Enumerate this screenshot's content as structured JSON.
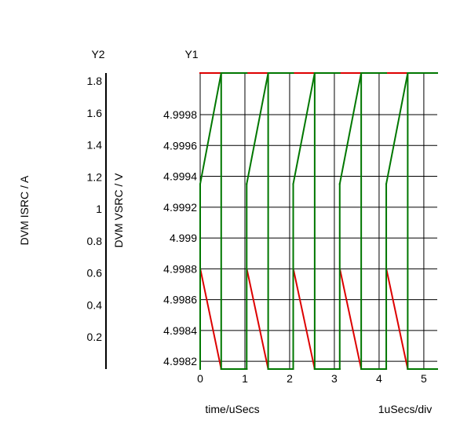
{
  "chart_data": {
    "type": "line",
    "title": "",
    "xlabel": "time/uSecs",
    "x_scale_note": "1uSecs/div",
    "xlim": [
      0,
      5.3
    ],
    "x_ticks": [
      "0",
      "1",
      "2",
      "3",
      "4",
      "5"
    ],
    "y1": {
      "axis_name": "Y1",
      "label": "DVM VSRC / V",
      "ylim": [
        4.99815,
        5.00007
      ],
      "ticks": [
        "4.9982",
        "4.9984",
        "4.9986",
        "4.9988",
        "4.999",
        "4.9992",
        "4.9994",
        "4.9996",
        "4.9998"
      ]
    },
    "y2": {
      "axis_name": "Y2",
      "label": "DVM ISRC / A",
      "ylim": [
        0,
        1.85
      ],
      "ticks": [
        "0.2",
        "0.4",
        "0.6",
        "0.8",
        "1",
        "1.2",
        "1.4",
        "1.6",
        "1.8"
      ]
    },
    "grid": true,
    "series": [
      {
        "name": "",
        "axis": "y1",
        "color": "#dd0000",
        "points": [
          [
            0,
            5.00007
          ],
          [
            0,
            4.99971
          ],
          [
            0,
            5.00007
          ],
          [
            1.04,
            5.00007
          ],
          [
            1.04,
            4.99971
          ],
          [
            1.04,
            5.00007
          ],
          [
            2.08,
            5.00007
          ],
          [
            2.08,
            4.99971
          ],
          [
            2.08,
            5.00007
          ],
          [
            3.12,
            5.00007
          ],
          [
            3.12,
            4.99971
          ],
          [
            3.12,
            5.00007
          ],
          [
            4.16,
            5.00007
          ],
          [
            4.16,
            4.99971
          ],
          [
            4.16,
            5.00007
          ]
        ],
        "segments": [
          [
            [
              0,
              5.00007
            ],
            [
              0.47,
              5.00007
            ]
          ],
          [
            [
              0.47,
              4.99815
            ],
            [
              1.04,
              4.99815
            ]
          ],
          [
            [
              1.04,
              5.00007
            ],
            [
              1.1,
              5.00007
            ]
          ],
          [
            [
              0.01,
              4.99879
            ],
            [
              0.47,
              4.99815
            ]
          ],
          [
            [
              1.04,
              5.00007
            ],
            [
              1.52,
              5.00007
            ]
          ],
          [
            [
              1.52,
              4.99815
            ],
            [
              2.08,
              4.99815
            ]
          ],
          [
            [
              1.05,
              4.99879
            ],
            [
              1.52,
              4.99815
            ]
          ],
          [
            [
              2.08,
              5.00007
            ],
            [
              2.56,
              5.00007
            ]
          ],
          [
            [
              2.56,
              4.99815
            ],
            [
              3.12,
              4.99815
            ]
          ],
          [
            [
              2.09,
              4.99879
            ],
            [
              2.56,
              4.99815
            ]
          ],
          [
            [
              3.12,
              5.00007
            ],
            [
              3.6,
              5.00007
            ]
          ],
          [
            [
              3.6,
              4.99815
            ],
            [
              4.16,
              4.99815
            ]
          ],
          [
            [
              3.13,
              4.99879
            ],
            [
              3.6,
              4.99815
            ]
          ],
          [
            [
              4.16,
              5.00007
            ],
            [
              4.64,
              5.00007
            ]
          ],
          [
            [
              4.64,
              4.99815
            ],
            [
              5.3,
              4.99815
            ]
          ],
          [
            [
              4.17,
              4.99879
            ],
            [
              4.64,
              4.99815
            ]
          ],
          [
            [
              4.64,
              5.00007
            ],
            [
              5.3,
              5.00007
            ]
          ]
        ]
      },
      {
        "name": "",
        "axis": "y1",
        "color": "#007700",
        "segments": [
          [
            [
              0,
              4.99815
            ],
            [
              0,
              4.99935
            ]
          ],
          [
            [
              0,
              4.99935
            ],
            [
              0.47,
              5.00007
            ]
          ],
          [
            [
              0.47,
              5.00007
            ],
            [
              1.04,
              5.00007
            ]
          ],
          [
            [
              1.04,
              4.99815
            ],
            [
              1.04,
              4.99935
            ]
          ],
          [
            [
              1.04,
              4.99935
            ],
            [
              1.52,
              5.00007
            ]
          ],
          [
            [
              1.52,
              5.00007
            ],
            [
              2.08,
              5.00007
            ]
          ],
          [
            [
              2.08,
              4.99815
            ],
            [
              2.08,
              4.99935
            ]
          ],
          [
            [
              2.08,
              4.99935
            ],
            [
              2.56,
              5.00007
            ]
          ],
          [
            [
              2.56,
              5.00007
            ],
            [
              3.12,
              5.00007
            ]
          ],
          [
            [
              3.12,
              4.99815
            ],
            [
              3.12,
              4.99935
            ]
          ],
          [
            [
              3.12,
              4.99935
            ],
            [
              3.6,
              5.00007
            ]
          ],
          [
            [
              3.6,
              5.00007
            ],
            [
              4.16,
              5.00007
            ]
          ],
          [
            [
              4.16,
              4.99815
            ],
            [
              4.16,
              4.99935
            ]
          ],
          [
            [
              4.16,
              4.99935
            ],
            [
              4.64,
              5.00007
            ]
          ],
          [
            [
              4.64,
              5.00007
            ],
            [
              5.3,
              5.00007
            ]
          ],
          [
            [
              0.47,
              5.00007
            ],
            [
              0.47,
              4.99815
            ]
          ],
          [
            [
              0.47,
              4.99815
            ],
            [
              1.04,
              4.99815
            ]
          ],
          [
            [
              1.52,
              5.00007
            ],
            [
              1.52,
              4.99815
            ]
          ],
          [
            [
              1.52,
              4.99815
            ],
            [
              2.08,
              4.99815
            ]
          ],
          [
            [
              2.56,
              5.00007
            ],
            [
              2.56,
              4.99815
            ]
          ],
          [
            [
              2.56,
              4.99815
            ],
            [
              3.12,
              4.99815
            ]
          ],
          [
            [
              3.6,
              5.00007
            ],
            [
              3.6,
              4.99815
            ]
          ],
          [
            [
              3.6,
              4.99815
            ],
            [
              4.16,
              4.99815
            ]
          ],
          [
            [
              4.64,
              5.00007
            ],
            [
              4.64,
              4.99815
            ]
          ],
          [
            [
              4.64,
              4.99815
            ],
            [
              5.3,
              4.99815
            ]
          ]
        ]
      }
    ]
  }
}
